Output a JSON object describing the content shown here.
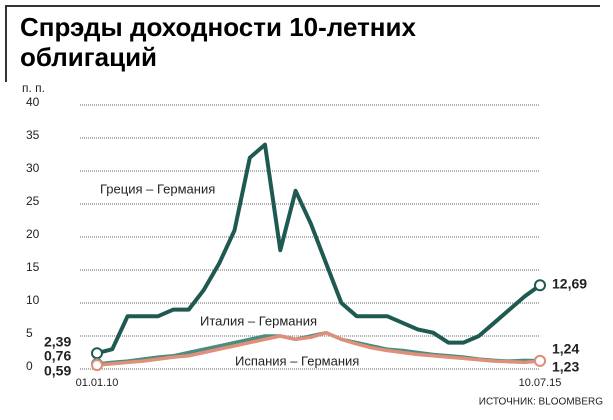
{
  "chart_data": {
    "type": "line",
    "title": "Спрэды доходности 10-летних облигаций",
    "y_label": "п. п.",
    "source": "ИСТОЧНИК: BLOOMBERG",
    "categories": [
      "01.01.10",
      null,
      null,
      null,
      null,
      null,
      null,
      null,
      null,
      null,
      null,
      null,
      null,
      null,
      null,
      null,
      null,
      null,
      null,
      null,
      null,
      null,
      null,
      null,
      null,
      null,
      null,
      null,
      null,
      "10.07.15"
    ],
    "ylim": [
      0,
      40
    ],
    "yticks": [
      0,
      5,
      10,
      15,
      20,
      25,
      30,
      35,
      40
    ],
    "grid": true,
    "series": [
      {
        "name": "Греция – Германия",
        "color": "#1f5a52",
        "values": [
          2.39,
          3,
          8,
          8,
          8,
          9,
          9,
          12,
          16,
          21,
          32,
          34,
          18,
          27,
          22,
          16,
          10,
          8,
          8,
          8,
          7,
          6,
          5.5,
          4,
          4,
          5,
          7,
          9,
          11,
          12.69
        ],
        "value_labels": [
          "2,39",
          null,
          null,
          null,
          null,
          null,
          null,
          null,
          null,
          null,
          null,
          null,
          null,
          null,
          null,
          null,
          null,
          null,
          null,
          null,
          null,
          null,
          null,
          null,
          null,
          null,
          null,
          null,
          null,
          "12,69"
        ]
      },
      {
        "name": "Италия – Германия",
        "color": "#4a8c7e",
        "values": [
          0.76,
          1,
          1.2,
          1.5,
          1.8,
          2,
          2.5,
          3,
          3.5,
          4,
          4.5,
          5,
          5,
          4.5,
          5,
          5.5,
          4.5,
          4,
          3.5,
          3,
          2.8,
          2.5,
          2.2,
          2,
          1.8,
          1.5,
          1.3,
          1.2,
          1.3,
          1.24
        ],
        "value_labels": [
          "0,76",
          null,
          null,
          null,
          null,
          null,
          null,
          null,
          null,
          null,
          null,
          null,
          null,
          null,
          null,
          null,
          null,
          null,
          null,
          null,
          null,
          null,
          null,
          null,
          null,
          null,
          null,
          null,
          null,
          "1,24"
        ]
      },
      {
        "name": "Испания – Германия",
        "color": "#e0907a",
        "values": [
          0.59,
          0.8,
          1,
          1.2,
          1.5,
          1.8,
          2,
          2.5,
          3,
          3.5,
          4,
          4.5,
          5,
          4.5,
          4.8,
          5.5,
          4.5,
          3.8,
          3.2,
          2.8,
          2.5,
          2.2,
          2,
          1.8,
          1.6,
          1.4,
          1.2,
          1.1,
          1,
          1.23
        ],
        "value_labels": [
          "0,59",
          null,
          null,
          null,
          null,
          null,
          null,
          null,
          null,
          null,
          null,
          null,
          null,
          null,
          null,
          null,
          null,
          null,
          null,
          null,
          null,
          null,
          null,
          null,
          null,
          null,
          null,
          null,
          null,
          "1,23"
        ]
      }
    ]
  }
}
